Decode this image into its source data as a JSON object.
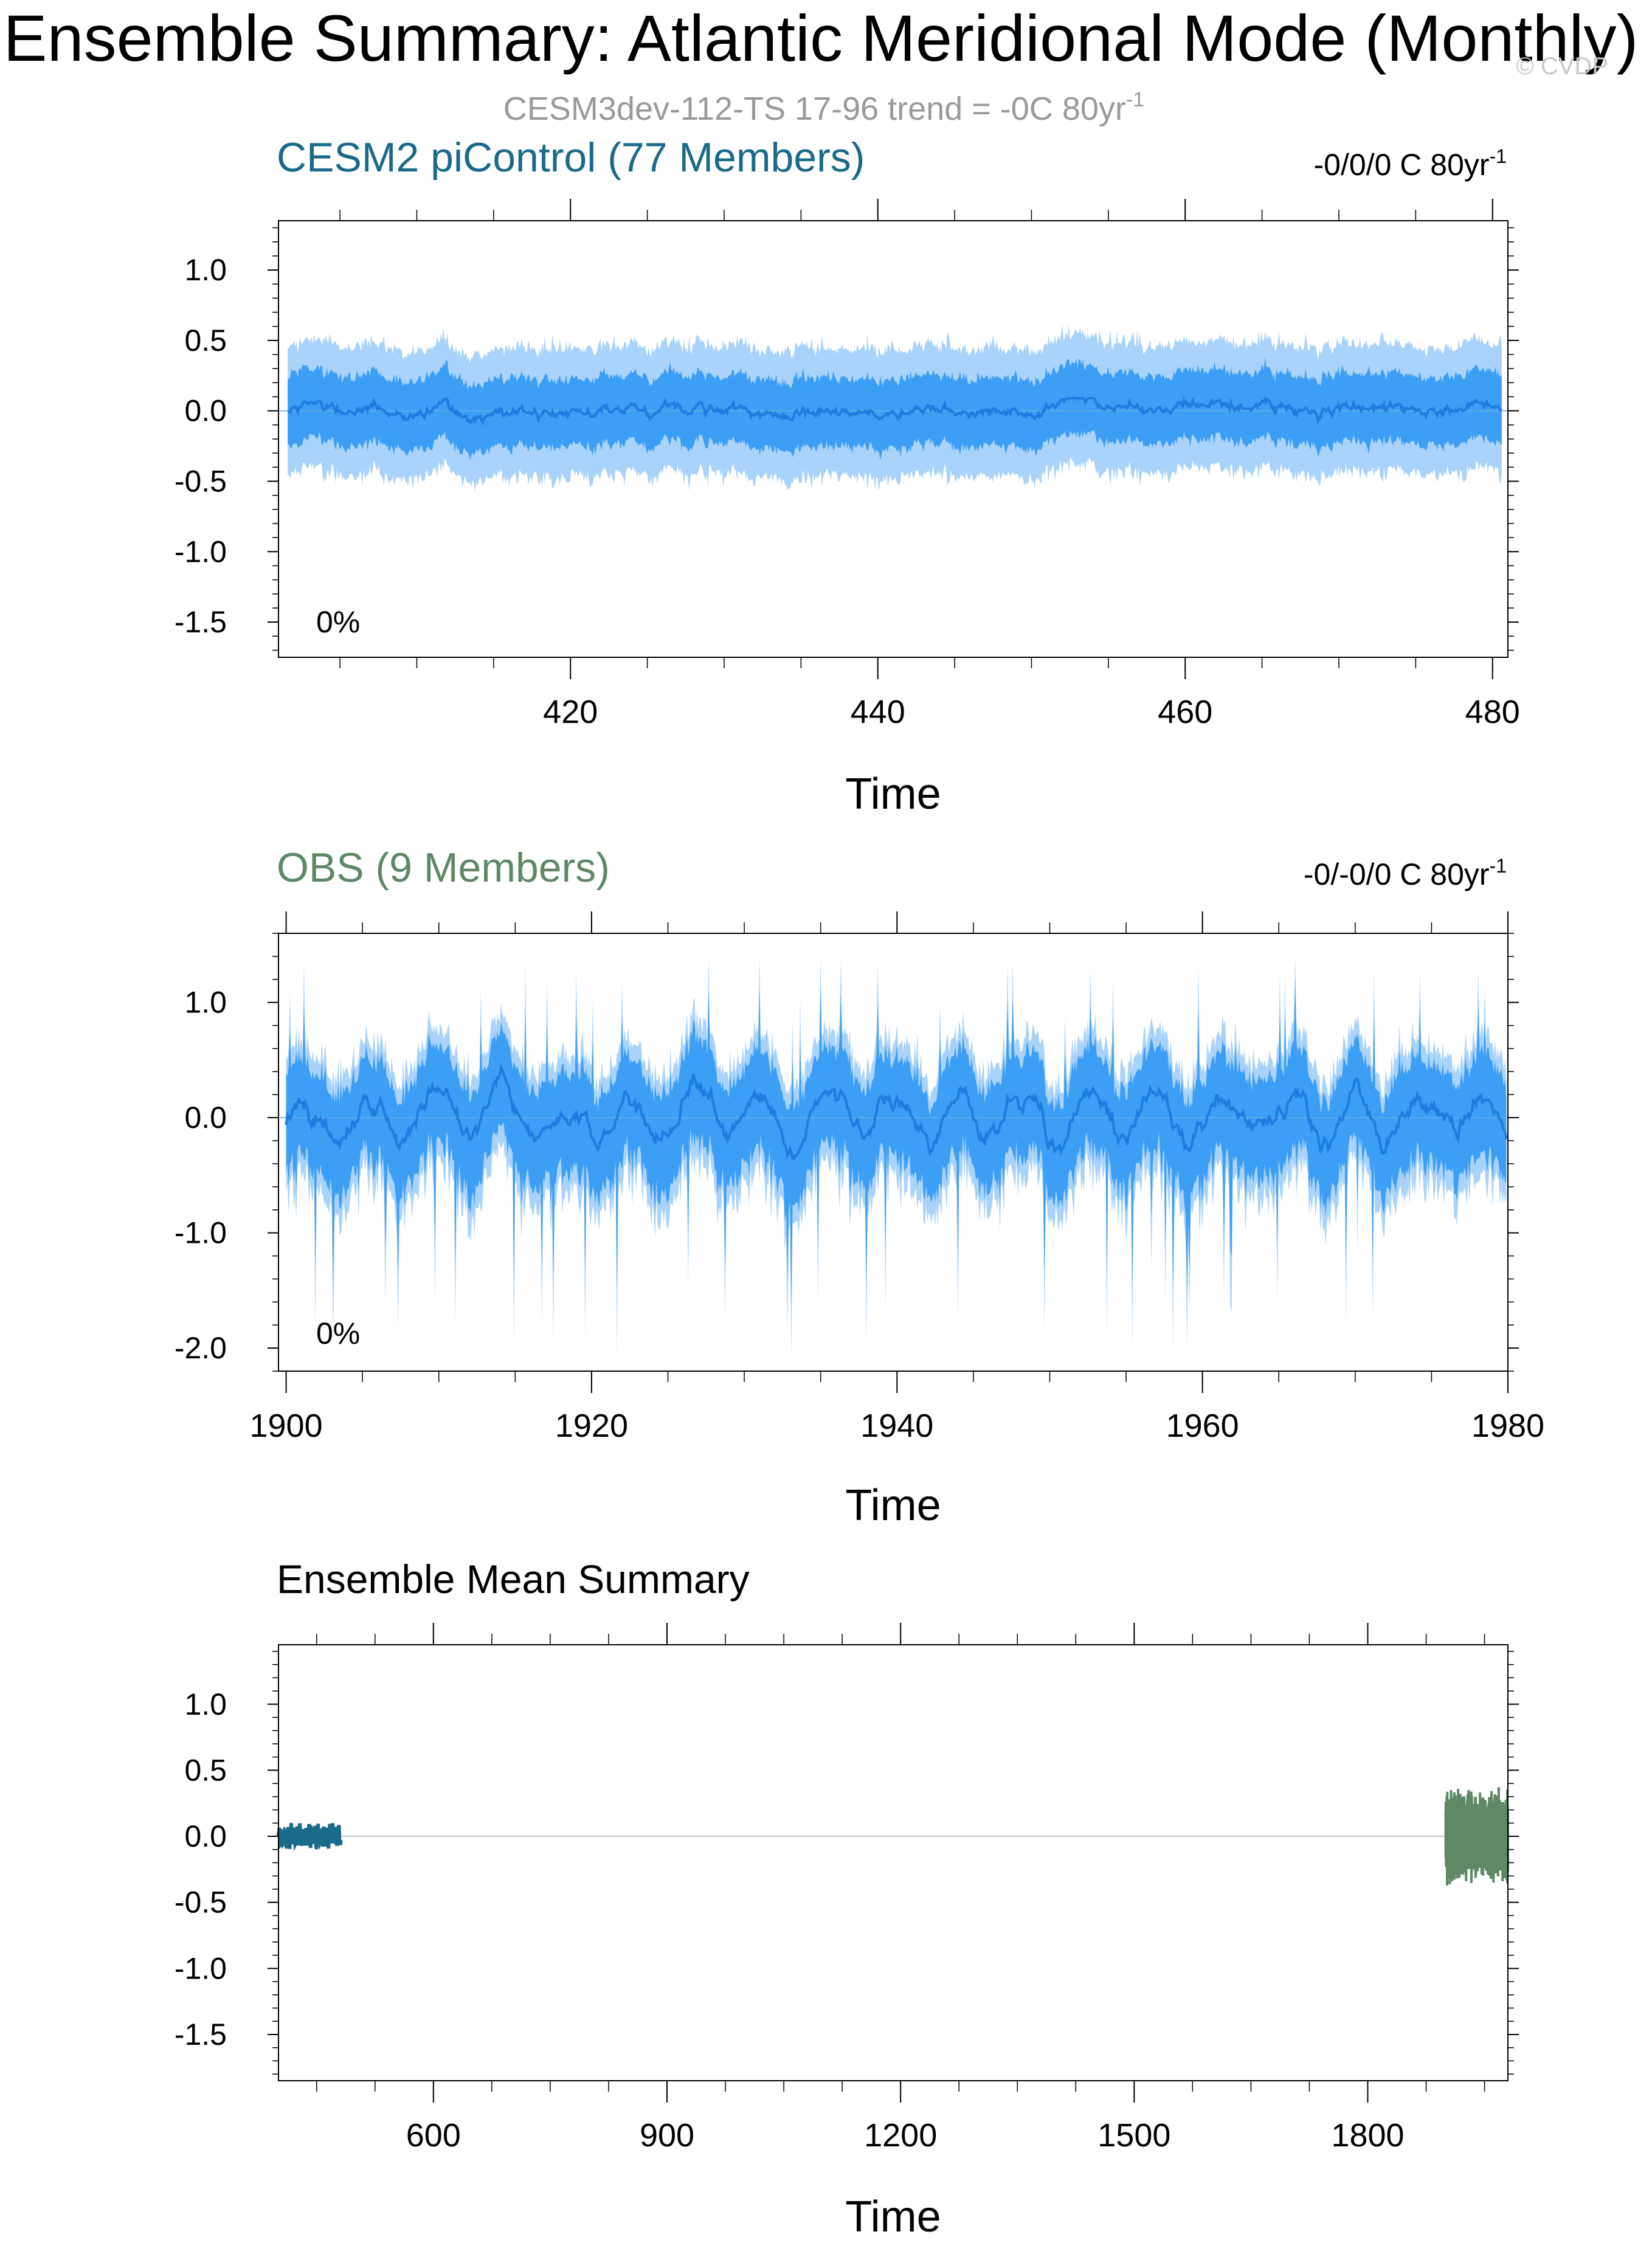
{
  "figure": {
    "title": "Ensemble Summary: Atlantic Meridional Mode (Monthly)",
    "subtitle_text": "CESM3dev-112-TS 17-96 trend = -0C 80yr",
    "subtitle_sup": "-1",
    "watermark": "© CVDP"
  },
  "colors": {
    "cesm": "#1a6a8a",
    "obs": "#5e8866",
    "band_outer": "#a9d3fa",
    "band_inner": "#3d9ef5",
    "mean_line": "#1e7be0",
    "axis": "#000000",
    "subtitle": "#9a9a9a"
  },
  "chart_data": [
    {
      "type": "area",
      "title": "CESM2 piControl (77 Members)",
      "trend_text": "-0/0/0 C 80yr",
      "trend_sup": "-1",
      "percent_label": "0%",
      "xlabel": "Time",
      "ylabel": "",
      "xlim": [
        401,
        481
      ],
      "ylim": [
        -1.75,
        1.35
      ],
      "xticks": [
        420,
        440,
        460,
        480
      ],
      "yticks": [
        1.0,
        0.5,
        0.0,
        -0.5,
        -1.0,
        -1.5
      ],
      "ytick_labels": [
        "1.0",
        "0.5",
        "0.0",
        "-0.5",
        "-1.0",
        "-1.5"
      ],
      "series": [
        {
          "role": "outer_band",
          "min": -0.75,
          "max": 0.72,
          "typical_halfwidth": 0.45
        },
        {
          "role": "inner_band",
          "typical_halfwidth": 0.25
        },
        {
          "role": "ensemble_mean",
          "amplitude": 0.07
        }
      ]
    },
    {
      "type": "area",
      "title": "OBS (9 Members)",
      "trend_text": "-0/-0/0 C 80yr",
      "trend_sup": "-1",
      "percent_label": "0%",
      "xlabel": "Time",
      "ylabel": "",
      "xlim": [
        1899.5,
        1980.0
      ],
      "ylim": [
        -2.2,
        1.6
      ],
      "xticks": [
        1900,
        1920,
        1940,
        1960,
        1980
      ],
      "yticks": [
        1.0,
        0.0,
        -1.0,
        -2.0
      ],
      "ytick_labels": [
        "1.0",
        "0.0",
        "-1.0",
        "-2.0"
      ],
      "series": [
        {
          "role": "outer_band",
          "min": -2.1,
          "max": 1.4
        },
        {
          "role": "inner_band",
          "min": -1.7,
          "max": 1.2
        },
        {
          "role": "ensemble_mean",
          "amplitude": 0.3
        }
      ]
    },
    {
      "type": "line",
      "title": "Ensemble Mean Summary",
      "xlabel": "Time",
      "ylabel": "",
      "xlim": [
        401,
        1980
      ],
      "ylim": [
        -1.85,
        1.45
      ],
      "xticks": [
        600,
        900,
        1200,
        1500,
        1800
      ],
      "yticks": [
        1.0,
        0.5,
        0.0,
        -0.5,
        -1.0,
        -1.5
      ],
      "ytick_labels": [
        "1.0",
        "0.5",
        "0.0",
        "-0.5",
        "-1.0",
        "-1.5"
      ],
      "series": [
        {
          "role": "cesm_mean",
          "x_range": [
            401,
            481
          ],
          "min": -0.1,
          "max": 0.1
        },
        {
          "role": "obs_mean",
          "x_range": [
            1900,
            1980
          ],
          "min": -0.6,
          "max": 0.45
        }
      ]
    }
  ]
}
